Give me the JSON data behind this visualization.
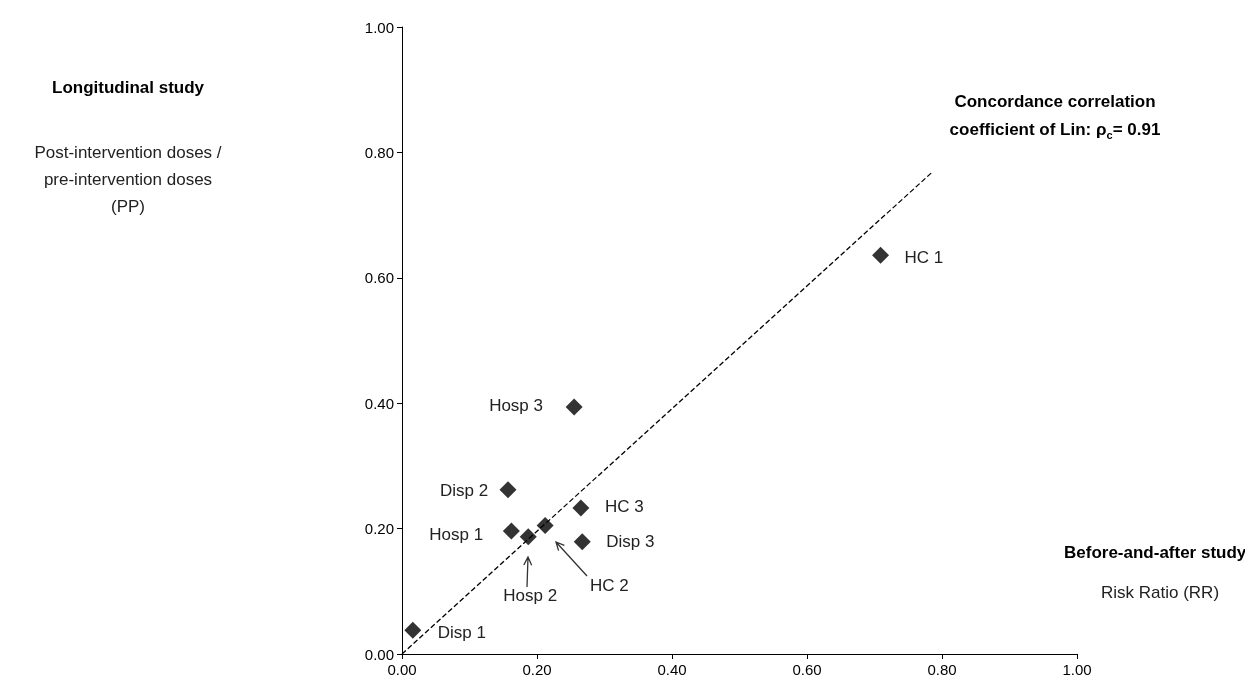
{
  "chart_data": {
    "type": "scatter",
    "xlim": [
      0,
      1
    ],
    "xticks": [
      {
        "value": 0,
        "label": "0.00"
      },
      {
        "value": 0.2,
        "label": "0.20"
      },
      {
        "value": 0.4,
        "label": "0.40"
      },
      {
        "value": 0.6,
        "label": "0.60"
      },
      {
        "value": 0.8,
        "label": "0.80"
      },
      {
        "value": 1,
        "label": "1.00"
      }
    ],
    "ylim": [
      0,
      1
    ],
    "yticks": [
      {
        "value": 0,
        "label": "0.00"
      },
      {
        "value": 0.2,
        "label": "0.20"
      },
      {
        "value": 0.4,
        "label": "0.40"
      },
      {
        "value": 0.6,
        "label": "0.60"
      },
      {
        "value": 0.8,
        "label": "0.80"
      },
      {
        "value": 1,
        "label": "1.00"
      }
    ],
    "grid": false,
    "marker": "diamond",
    "series": [
      {
        "color": "#000000",
        "x": [
          0.016,
          0.157,
          0.162,
          0.187,
          0.212,
          0.265,
          0.267,
          0.255,
          0.709
        ],
        "values": [
          0.038,
          0.262,
          0.196,
          0.187,
          0.205,
          0.233,
          0.179,
          0.394,
          0.636
        ]
      },
      {
        "type": "line",
        "color": "#000000",
        "line_style": "dashed",
        "marker": "none",
        "x": [
          0,
          0.784
        ],
        "values": [
          0,
          0.767
        ]
      }
    ],
    "annotations": [
      "Longitudinal study",
      "Post-intervention doses / pre-intervention doses (PP)",
      "Risk Ratio (RR)",
      "Before-and-after study",
      "Concordance correlation coefficient of Lin: ρ$_{c}$= 0.91",
      {
        "text": "Disp 1",
        "x": 0.016,
        "y": 0.038
      },
      {
        "text": "Disp 2",
        "x": 0.157,
        "y": 0.262
      },
      {
        "text": "Hosp 1",
        "x": 0.162,
        "y": 0.196
      },
      {
        "text": "Hosp 2",
        "x": 0.187,
        "y": 0.187
      },
      "HC 2",
      {
        "text": "HC 3",
        "x": 0.265,
        "y": 0.233
      },
      {
        "text": "Disp 3",
        "x": 0.267,
        "y": 0.179
      },
      {
        "text": "Hosp 3",
        "x": 0.255,
        "y": 0.394
      },
      {
        "text": "HC 1",
        "x": 0.709,
        "y": 0.636
      }
    ]
  }
}
